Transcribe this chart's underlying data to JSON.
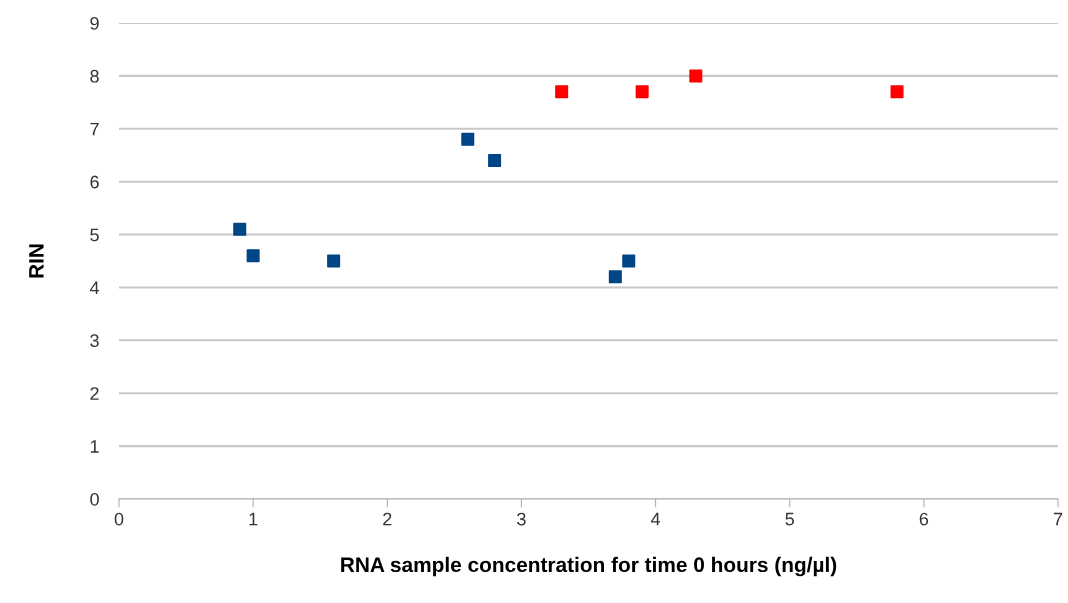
{
  "chart_data": {
    "type": "scatter",
    "xlabel": "RNA sample concentration for time 0 hours (ng/µl)",
    "ylabel": "RIN",
    "series": [
      {
        "color": "#004586",
        "x": [
          0.9,
          1.0,
          1.6,
          2.6,
          2.8,
          3.7,
          3.8
        ],
        "values": [
          5.1,
          4.6,
          4.5,
          6.8,
          6.4,
          4.2,
          4.5
        ]
      },
      {
        "color": "#ff0000",
        "x": [
          3.3,
          3.9,
          4.3,
          5.8
        ],
        "values": [
          7.7,
          7.7,
          8.0,
          7.7
        ]
      }
    ],
    "xlim": [
      0,
      7
    ],
    "xticks": [
      0,
      1,
      2,
      3,
      4,
      5,
      6,
      7
    ],
    "ylim": [
      0,
      9
    ],
    "yticks": [
      0,
      1,
      2,
      3,
      4,
      5,
      6,
      7,
      8,
      9
    ],
    "grid": "y",
    "marker": "square",
    "legend": false
  }
}
